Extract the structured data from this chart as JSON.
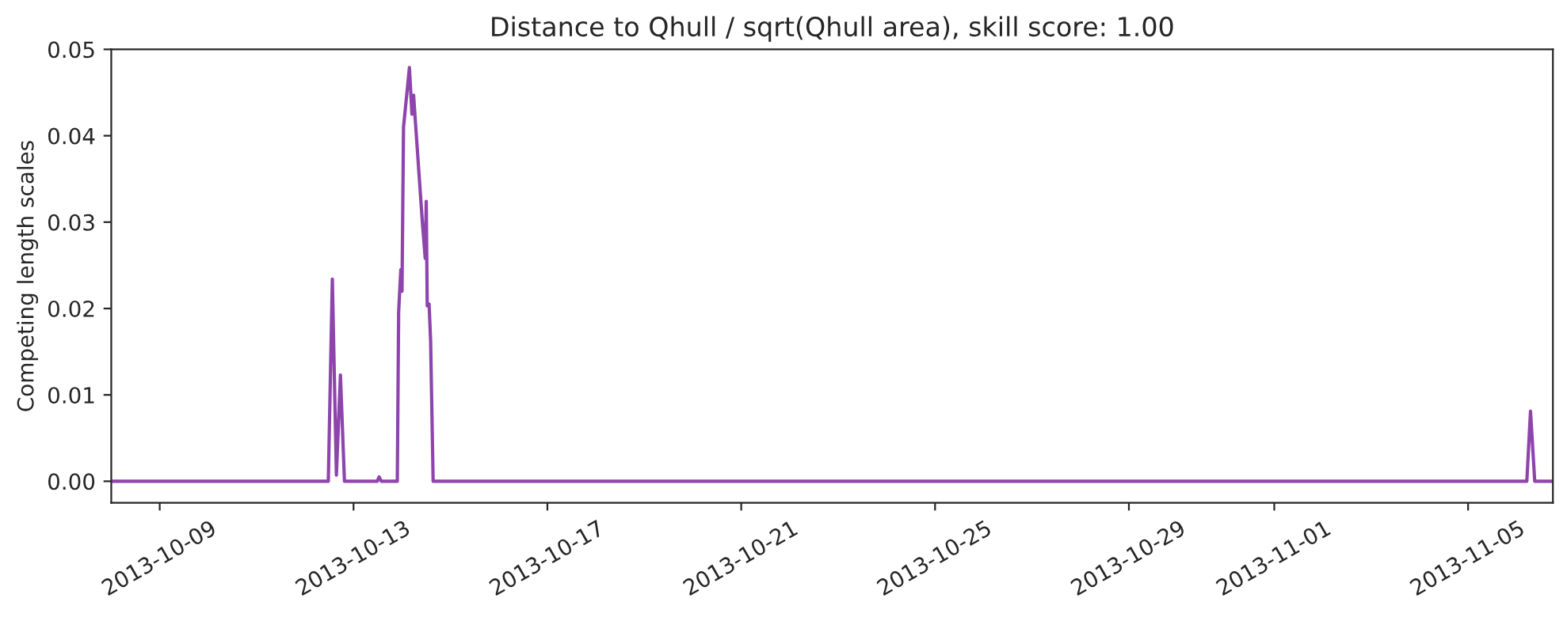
{
  "chart_data": {
    "type": "line",
    "title": "Distance to Qhull / sqrt(Qhull area), skill score: 1.00",
    "ylabel": "Competing length scales",
    "x": [
      "2013-10-08T00:00",
      "2013-10-12T11:30",
      "2013-10-12T13:30",
      "2013-10-12T15:30",
      "2013-10-12T17:30",
      "2013-10-12T19:30",
      "2013-10-13T11:45",
      "2013-10-13T12:40",
      "2013-10-13T13:45",
      "2013-10-13T21:40",
      "2013-10-13T22:20",
      "2013-10-13T23:25",
      "2013-10-14T00:00",
      "2013-10-14T00:45",
      "2013-10-14T03:40",
      "2013-10-14T04:55",
      "2013-10-14T05:45",
      "2013-10-14T06:15",
      "2013-10-14T10:05",
      "2013-10-14T11:30",
      "2013-10-14T12:00",
      "2013-10-14T12:30",
      "2013-10-14T13:25",
      "2013-10-14T14:10",
      "2013-10-14T15:25",
      "2013-11-06T05:05",
      "2013-11-06T06:55",
      "2013-11-06T09:00",
      "2013-11-06T18:00"
    ],
    "series": [
      {
        "color": "#8e44ad",
        "values": [
          0,
          0,
          0.0234,
          0.0007,
          0.0123,
          0,
          0,
          0.0005,
          0,
          0,
          0.0196,
          0.0245,
          0.022,
          0.041,
          0.0479,
          0.0425,
          0.0447,
          0.0429,
          0.03,
          0.0258,
          0.0324,
          0.0203,
          0.0205,
          0.0163,
          0,
          0,
          0.0081,
          0,
          0
        ]
      }
    ],
    "xlim": [
      "2013-10-08T00:00",
      "2013-11-06T18:00"
    ],
    "xticks": [
      {
        "value": "2013-10-09",
        "label": "2013-10-09"
      },
      {
        "value": "2013-10-13",
        "label": "2013-10-13"
      },
      {
        "value": "2013-10-17",
        "label": "2013-10-17"
      },
      {
        "value": "2013-10-21",
        "label": "2013-10-21"
      },
      {
        "value": "2013-10-25",
        "label": "2013-10-25"
      },
      {
        "value": "2013-10-29",
        "label": "2013-10-29"
      },
      {
        "value": "2013-11-01",
        "label": "2013-11-01"
      },
      {
        "value": "2013-11-05",
        "label": "2013-11-05"
      }
    ],
    "ylim": [
      -0.0025,
      0.05
    ],
    "yticks": [
      {
        "value": 0,
        "label": "0.00"
      },
      {
        "value": 0.01,
        "label": "0.01"
      },
      {
        "value": 0.02,
        "label": "0.02"
      },
      {
        "value": 0.03,
        "label": "0.03"
      },
      {
        "value": 0.04,
        "label": "0.04"
      },
      {
        "value": 0.05,
        "label": "0.05"
      }
    ],
    "grid": false,
    "line_style": "solid"
  }
}
